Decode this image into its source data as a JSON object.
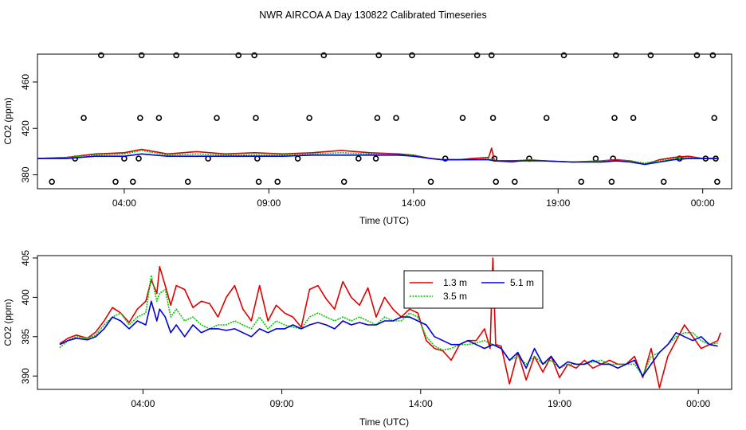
{
  "title": "NWR AIRCOA A  Day 130822  Calibrated Timeseries",
  "colors": {
    "s1": "#e00000",
    "s2": "#00c800",
    "s3": "#0000dd",
    "axis": "#000000"
  },
  "chart_data": [
    {
      "type": "scatter+line",
      "xlabel": "Time (UTC)",
      "ylabel": "CO2 (ppm)",
      "xlim": [
        0,
        24
      ],
      "ylim": [
        368,
        484
      ],
      "xticks": [
        3,
        8,
        13,
        18,
        23
      ],
      "xtick_labels": [
        "04:00",
        "09:00",
        "14:00",
        "19:00",
        "00:00"
      ],
      "yticks": [
        380,
        420,
        460
      ],
      "ytick_labels": [
        "380",
        "420",
        "460"
      ],
      "calibration_points": {
        "name": "calibration",
        "points": [
          [
            0.5,
            374
          ],
          [
            1.3,
            394
          ],
          [
            1.6,
            429
          ],
          [
            2.2,
            483
          ],
          [
            2.7,
            374
          ],
          [
            3.0,
            394
          ],
          [
            3.3,
            374
          ],
          [
            3.5,
            394
          ],
          [
            3.55,
            429
          ],
          [
            3.6,
            483
          ],
          [
            4.2,
            429
          ],
          [
            4.8,
            483
          ],
          [
            5.2,
            374
          ],
          [
            5.9,
            394
          ],
          [
            6.2,
            429
          ],
          [
            6.95,
            483
          ],
          [
            7.5,
            483
          ],
          [
            7.55,
            429
          ],
          [
            7.6,
            394
          ],
          [
            7.65,
            374
          ],
          [
            8.3,
            374
          ],
          [
            9.0,
            394
          ],
          [
            9.4,
            429
          ],
          [
            9.9,
            483
          ],
          [
            10.6,
            374
          ],
          [
            11.1,
            394
          ],
          [
            11.7,
            394
          ],
          [
            11.75,
            429
          ],
          [
            11.8,
            483
          ],
          [
            12.4,
            429
          ],
          [
            12.95,
            483
          ],
          [
            13.6,
            374
          ],
          [
            14.1,
            394
          ],
          [
            14.7,
            429
          ],
          [
            15.2,
            483
          ],
          [
            15.7,
            483
          ],
          [
            15.75,
            429
          ],
          [
            15.8,
            394
          ],
          [
            15.85,
            374
          ],
          [
            16.5,
            374
          ],
          [
            17.0,
            394
          ],
          [
            17.6,
            429
          ],
          [
            18.2,
            483
          ],
          [
            18.8,
            374
          ],
          [
            19.3,
            394
          ],
          [
            19.85,
            374
          ],
          [
            19.9,
            394
          ],
          [
            19.95,
            429
          ],
          [
            20.0,
            483
          ],
          [
            20.6,
            429
          ],
          [
            21.2,
            483
          ],
          [
            21.65,
            374
          ],
          [
            22.2,
            394
          ],
          [
            22.8,
            483
          ],
          [
            23.1,
            394
          ],
          [
            23.35,
            483
          ],
          [
            23.4,
            429
          ],
          [
            23.45,
            394
          ],
          [
            23.5,
            374
          ]
        ]
      },
      "series": [
        {
          "name": "1.3 m",
          "color": "#e00000",
          "x": [
            0,
            1,
            2,
            3,
            3.6,
            4.5,
            5.5,
            6.5,
            7.5,
            8.5,
            9.5,
            10.5,
            11.5,
            12.5,
            13.0,
            13.6,
            14.0,
            14.6,
            15.0,
            15.6,
            15.7,
            15.8,
            16.4,
            17.0,
            17.5,
            18.5,
            19.5,
            20.0,
            20.5,
            21.0,
            21.5,
            22.0,
            22.5,
            23.0,
            23.5
          ],
          "values": [
            394,
            395,
            398,
            399,
            402,
            398,
            400,
            398,
            399,
            398,
            399,
            401,
            399,
            398,
            397,
            394,
            393,
            393,
            394,
            395,
            403,
            392,
            391,
            393,
            392,
            391,
            392,
            393,
            392,
            389,
            393,
            395,
            396,
            394,
            394
          ]
        },
        {
          "name": "3.5 m",
          "color": "#00c800",
          "x": [
            0,
            1,
            2,
            3,
            3.6,
            4.5,
            5.5,
            6.5,
            7.5,
            8.5,
            9.5,
            10.5,
            11.5,
            12.5,
            13.0,
            13.6,
            14.0,
            14.6,
            15.0,
            15.6,
            15.8,
            16.4,
            17.0,
            17.5,
            18.5,
            19.5,
            20.0,
            20.5,
            21.0,
            21.5,
            22.0,
            22.5,
            23.0,
            23.5
          ],
          "values": [
            394,
            395,
            397,
            398,
            401,
            397,
            398,
            397,
            397,
            397,
            398,
            399,
            398,
            397,
            397,
            394,
            393,
            393,
            393,
            394,
            392,
            392,
            393,
            392,
            391,
            392,
            392,
            392,
            390,
            392,
            394,
            395,
            394,
            394
          ]
        },
        {
          "name": "5.1 m",
          "color": "#0000dd",
          "x": [
            0,
            1,
            2,
            3,
            3.6,
            4.5,
            5.5,
            6.5,
            7.5,
            8.5,
            9.5,
            10.5,
            11.5,
            12.5,
            13.0,
            13.6,
            14.0,
            14.6,
            15.0,
            15.6,
            15.8,
            16.4,
            17.0,
            17.5,
            18.5,
            19.5,
            20.0,
            20.5,
            21.0,
            21.5,
            22.0,
            22.5,
            23.0,
            23.5
          ],
          "values": [
            394,
            394,
            396,
            396,
            398,
            396,
            396,
            396,
            396,
            396,
            397,
            397,
            397,
            397,
            396,
            394,
            393,
            393,
            393,
            393,
            392,
            392,
            392,
            392,
            391,
            391,
            392,
            391,
            389,
            391,
            393,
            394,
            394,
            394
          ]
        }
      ]
    },
    {
      "type": "line",
      "xlabel": "Time (UTC)",
      "ylabel": "CO2 (ppm)",
      "xlim": [
        -0.8,
        24.2
      ],
      "ylim": [
        388.3,
        405.3
      ],
      "xticks": [
        3,
        8,
        13,
        18,
        23
      ],
      "xtick_labels": [
        "04:00",
        "09:00",
        "14:00",
        "19:00",
        "00:00"
      ],
      "yticks": [
        390,
        395,
        400,
        405
      ],
      "ytick_labels": [
        "390",
        "395",
        "400",
        "405"
      ],
      "legend": {
        "position": "top-center",
        "labels": [
          "1.3 m",
          "3.5 m",
          "5.1 m"
        ]
      },
      "series": [
        {
          "name": "1.3 m",
          "color": "#e00000",
          "x": [
            0,
            0.3,
            0.6,
            1.0,
            1.3,
            1.6,
            1.9,
            2.2,
            2.5,
            2.8,
            3.1,
            3.3,
            3.5,
            3.6,
            3.8,
            4.0,
            4.2,
            4.5,
            4.8,
            5.1,
            5.4,
            5.7,
            6.0,
            6.3,
            6.6,
            6.9,
            7.2,
            7.5,
            7.8,
            8.1,
            8.4,
            8.7,
            9.0,
            9.3,
            9.6,
            9.9,
            10.2,
            10.5,
            10.8,
            11.1,
            11.4,
            11.7,
            12.0,
            12.3,
            12.6,
            12.9,
            13.2,
            13.5,
            13.8,
            14.1,
            14.4,
            14.7,
            15.0,
            15.3,
            15.5,
            15.6,
            15.7,
            15.9,
            16.2,
            16.5,
            16.8,
            17.1,
            17.4,
            17.7,
            18.0,
            18.3,
            18.6,
            18.9,
            19.2,
            19.5,
            19.8,
            20.1,
            20.4,
            20.7,
            21.0,
            21.3,
            21.6,
            21.9,
            22.2,
            22.5,
            22.8,
            23.1,
            23.4,
            23.7,
            23.8
          ],
          "values": [
            394.1,
            394.8,
            395.2,
            394.8,
            395.6,
            397.0,
            398.7,
            398.0,
            396.8,
            398.5,
            399.5,
            402.2,
            400.5,
            403.9,
            401.5,
            399.0,
            401.5,
            401.0,
            398.7,
            399.5,
            399.2,
            397.5,
            400.0,
            401.5,
            398.5,
            397.0,
            401.5,
            397.0,
            399.0,
            398.0,
            397.5,
            396.2,
            401.0,
            401.5,
            399.8,
            398.5,
            402.0,
            400.0,
            399.0,
            401.2,
            397.5,
            400.0,
            398.5,
            397.5,
            398.5,
            398.0,
            394.5,
            393.5,
            393.2,
            392.0,
            394.0,
            394.5,
            394.5,
            396.0,
            393.5,
            405.0,
            394.0,
            393.8,
            389.0,
            393.0,
            389.5,
            392.5,
            390.5,
            392.5,
            389.8,
            391.5,
            391.0,
            392.0,
            391.0,
            391.5,
            392.0,
            391.5,
            391.5,
            392.5,
            389.8,
            393.5,
            388.5,
            392.5,
            394.5,
            396.5,
            395.0,
            393.5,
            394.0,
            394.5,
            395.5
          ]
        },
        {
          "name": "3.5 m",
          "color": "#00c800",
          "x": [
            0,
            0.3,
            0.6,
            1.0,
            1.3,
            1.6,
            1.9,
            2.2,
            2.5,
            2.8,
            3.1,
            3.3,
            3.5,
            3.6,
            3.8,
            4.0,
            4.2,
            4.5,
            4.8,
            5.1,
            5.4,
            5.7,
            6.0,
            6.3,
            6.6,
            6.9,
            7.2,
            7.5,
            7.8,
            8.1,
            8.4,
            8.7,
            9.0,
            9.3,
            9.6,
            9.9,
            10.2,
            10.5,
            10.8,
            11.1,
            11.4,
            11.7,
            12.0,
            12.3,
            12.6,
            12.9,
            13.2,
            13.5,
            13.8,
            14.1,
            14.4,
            14.7,
            15.0,
            15.3,
            15.6,
            15.9,
            16.2,
            16.5,
            16.8,
            17.1,
            17.4,
            17.7,
            18.0,
            18.3,
            18.6,
            18.9,
            19.2,
            19.5,
            19.8,
            20.1,
            20.4,
            20.7,
            21.0,
            21.3,
            21.6,
            21.9,
            22.2,
            22.5,
            22.8,
            23.1,
            23.4,
            23.7
          ],
          "values": [
            393.6,
            394.5,
            395.0,
            394.8,
            395.2,
            396.5,
            397.5,
            398.0,
            396.5,
            397.5,
            398.0,
            402.8,
            399.5,
            400.5,
            401.0,
            397.5,
            398.5,
            397.0,
            397.5,
            396.5,
            396.0,
            396.5,
            396.5,
            397.0,
            396.5,
            396.0,
            397.5,
            396.0,
            397.0,
            396.5,
            396.2,
            396.0,
            397.5,
            398.0,
            397.5,
            397.0,
            397.5,
            397.0,
            397.5,
            397.0,
            396.5,
            397.5,
            397.0,
            397.0,
            398.0,
            397.5,
            395.0,
            393.8,
            393.3,
            393.5,
            394.0,
            394.0,
            394.2,
            394.5,
            394.0,
            393.5,
            392.0,
            392.5,
            391.5,
            392.5,
            391.5,
            392.0,
            391.0,
            391.5,
            391.5,
            391.5,
            391.8,
            392.0,
            391.5,
            391.5,
            391.5,
            391.5,
            390.0,
            392.5,
            393.0,
            394.0,
            395.0,
            395.5,
            395.5,
            394.5,
            394.0,
            394.2
          ]
        },
        {
          "name": "5.1 m",
          "color": "#0000dd",
          "x": [
            0,
            0.3,
            0.6,
            1.0,
            1.3,
            1.6,
            1.9,
            2.2,
            2.5,
            2.8,
            3.1,
            3.3,
            3.5,
            3.6,
            3.8,
            4.0,
            4.2,
            4.5,
            4.8,
            5.1,
            5.4,
            5.7,
            6.0,
            6.3,
            6.6,
            6.9,
            7.2,
            7.5,
            7.8,
            8.1,
            8.4,
            8.7,
            9.0,
            9.3,
            9.6,
            9.9,
            10.2,
            10.5,
            10.8,
            11.1,
            11.4,
            11.7,
            12.0,
            12.3,
            12.6,
            12.9,
            13.2,
            13.5,
            13.8,
            14.1,
            14.4,
            14.7,
            15.0,
            15.3,
            15.6,
            15.9,
            16.2,
            16.5,
            16.8,
            17.1,
            17.4,
            17.7,
            18.0,
            18.3,
            18.6,
            18.9,
            19.2,
            19.5,
            19.8,
            20.1,
            20.4,
            20.7,
            21.0,
            21.3,
            21.6,
            21.9,
            22.2,
            22.5,
            22.8,
            23.1,
            23.4,
            23.7
          ],
          "values": [
            394.0,
            394.5,
            394.8,
            394.6,
            395.0,
            396.0,
            397.5,
            397.0,
            396.0,
            397.0,
            396.5,
            399.5,
            397.0,
            398.5,
            397.5,
            395.5,
            396.5,
            395.0,
            396.5,
            395.5,
            396.0,
            396.0,
            395.8,
            396.0,
            395.5,
            395.0,
            396.0,
            395.5,
            396.0,
            396.0,
            396.5,
            396.0,
            396.5,
            396.8,
            396.5,
            396.0,
            397.0,
            396.5,
            396.8,
            396.5,
            396.5,
            397.0,
            397.0,
            397.5,
            397.5,
            397.0,
            396.5,
            395.0,
            394.5,
            394.0,
            394.0,
            394.5,
            394.0,
            393.5,
            394.0,
            393.5,
            392.0,
            393.0,
            391.0,
            393.5,
            391.5,
            392.5,
            391.0,
            391.8,
            391.5,
            391.5,
            392.0,
            391.5,
            391.5,
            391.0,
            391.5,
            392.0,
            390.0,
            391.5,
            393.0,
            394.0,
            395.5,
            395.0,
            394.5,
            395.0,
            394.0,
            393.8
          ]
        }
      ]
    }
  ]
}
